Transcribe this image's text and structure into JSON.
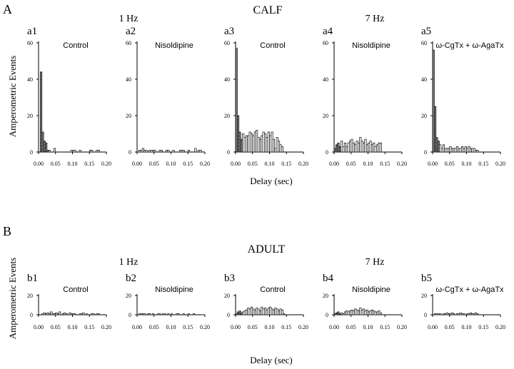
{
  "figure": {
    "panel_letters": [
      "A",
      "B"
    ],
    "section_titles": [
      "CALF",
      "ADULT"
    ],
    "frequency_labels": [
      "1 Hz",
      "7 Hz",
      "1 Hz",
      "7 Hz"
    ],
    "ylabel": "Amperometric Events",
    "xlabel": "Delay (sec)"
  },
  "chart_data": [
    {
      "type": "bar",
      "id": "a1",
      "row": "A",
      "label": "a1",
      "title": "Control",
      "xlabel": "",
      "ylabel": "Amperometric Events",
      "xlim": [
        0,
        0.2
      ],
      "ylim": [
        0,
        60
      ],
      "xticks": [
        "0.00",
        "0.05",
        "0.10",
        "0.15",
        "0.20"
      ],
      "yticks": [
        "0",
        "20",
        "40",
        "60"
      ],
      "bin_width": 0.005,
      "bins_start": [
        0,
        0.005,
        0.01,
        0.015,
        0.02,
        0.025,
        0.03,
        0.035,
        0.04,
        0.045,
        0.05,
        0.055,
        0.06,
        0.065,
        0.07,
        0.075,
        0.08,
        0.085,
        0.09,
        0.095,
        0.1,
        0.105,
        0.11,
        0.115,
        0.12,
        0.125,
        0.13,
        0.135,
        0.14,
        0.145,
        0.15,
        0.155,
        0.16,
        0.165,
        0.17,
        0.175,
        0.18,
        0.185,
        0.19,
        0.195
      ],
      "values": [
        0,
        44,
        11,
        6,
        5,
        1,
        1,
        0,
        0,
        2,
        0,
        0,
        0,
        0,
        0,
        0,
        0,
        0,
        0,
        1,
        1,
        1,
        0,
        0,
        1,
        0,
        0,
        0,
        0,
        0,
        1,
        1,
        0,
        0,
        1,
        1,
        0,
        0,
        0,
        0
      ],
      "hatched_below": 0.03
    },
    {
      "type": "bar",
      "id": "a2",
      "row": "A",
      "label": "a2",
      "title": "Nisoldipine",
      "xlabel": "",
      "ylabel": "",
      "xlim": [
        0,
        0.2
      ],
      "ylim": [
        0,
        60
      ],
      "xticks": [
        "0.00",
        "0.05",
        "0.10",
        "0.15",
        "0.20"
      ],
      "yticks": [
        "0",
        "20",
        "40",
        "60"
      ],
      "bin_width": 0.005,
      "bins_start": [
        0,
        0.005,
        0.01,
        0.015,
        0.02,
        0.025,
        0.03,
        0.035,
        0.04,
        0.045,
        0.05,
        0.055,
        0.06,
        0.065,
        0.07,
        0.075,
        0.08,
        0.085,
        0.09,
        0.095,
        0.1,
        0.105,
        0.11,
        0.115,
        0.12,
        0.125,
        0.13,
        0.135,
        0.14,
        0.145,
        0.15,
        0.155,
        0.16,
        0.165,
        0.17,
        0.175,
        0.18,
        0.185,
        0.19,
        0.195
      ],
      "values": [
        0,
        1,
        1,
        2,
        1,
        1,
        0,
        1,
        1,
        1,
        1,
        0,
        0,
        1,
        1,
        0,
        0,
        1,
        1,
        0,
        0,
        1,
        0,
        0,
        0,
        1,
        1,
        1,
        0,
        0,
        1,
        0,
        0,
        0,
        2,
        0,
        1,
        1,
        0,
        0
      ],
      "hatched_below": 0.0
    },
    {
      "type": "bar",
      "id": "a3",
      "row": "A",
      "label": "a3",
      "title": "Control",
      "xlabel": "Delay (sec)",
      "ylabel": "",
      "xlim": [
        0,
        0.2
      ],
      "ylim": [
        0,
        60
      ],
      "xticks": [
        "0.00",
        "0.05",
        "0.10",
        "0.15",
        "0.20"
      ],
      "yticks": [
        "0",
        "20",
        "40",
        "60"
      ],
      "bin_width": 0.005,
      "bins_start": [
        0,
        0.005,
        0.01,
        0.015,
        0.02,
        0.025,
        0.03,
        0.035,
        0.04,
        0.045,
        0.05,
        0.055,
        0.06,
        0.065,
        0.07,
        0.075,
        0.08,
        0.085,
        0.09,
        0.095,
        0.1,
        0.105,
        0.11,
        0.115,
        0.12,
        0.125,
        0.13,
        0.135,
        0.14,
        0.145,
        0.15,
        0.155,
        0.16,
        0.165,
        0.17,
        0.175,
        0.18,
        0.185,
        0.19,
        0.195
      ],
      "values": [
        57,
        20,
        11,
        7,
        10,
        8,
        9,
        9,
        11,
        10,
        9,
        11,
        12,
        8,
        7,
        9,
        11,
        10,
        8,
        11,
        9,
        11,
        7,
        2,
        8,
        6,
        4,
        3,
        0,
        0,
        0,
        0,
        0,
        0,
        0,
        0,
        0,
        0,
        0,
        0
      ],
      "hatched_below": 0.02
    },
    {
      "type": "bar",
      "id": "a4",
      "row": "A",
      "label": "a4",
      "title": "Nisoldipine",
      "xlabel": "",
      "ylabel": "",
      "xlim": [
        0,
        0.2
      ],
      "ylim": [
        0,
        60
      ],
      "xticks": [
        "0.00",
        "0.05",
        "0.10",
        "0.15",
        "0.20"
      ],
      "yticks": [
        "0",
        "20",
        "40",
        "60"
      ],
      "bin_width": 0.005,
      "bins_start": [
        0,
        0.005,
        0.01,
        0.015,
        0.02,
        0.025,
        0.03,
        0.035,
        0.04,
        0.045,
        0.05,
        0.055,
        0.06,
        0.065,
        0.07,
        0.075,
        0.08,
        0.085,
        0.09,
        0.095,
        0.1,
        0.105,
        0.11,
        0.115,
        0.12,
        0.125,
        0.13,
        0.135,
        0.14,
        0.145,
        0.15,
        0.155,
        0.16,
        0.165,
        0.17,
        0.175,
        0.18,
        0.185,
        0.19,
        0.195
      ],
      "values": [
        2,
        4,
        5,
        3,
        6,
        3,
        5,
        3,
        5,
        6,
        7,
        5,
        4,
        6,
        5,
        8,
        6,
        5,
        7,
        4,
        5,
        6,
        4,
        5,
        3,
        4,
        5,
        5,
        0,
        0,
        0,
        0,
        0,
        0,
        0,
        0,
        0,
        0,
        0,
        0
      ],
      "hatched_below": 0.02
    },
    {
      "type": "bar",
      "id": "a5",
      "row": "A",
      "label": "a5",
      "title": "ω-CgTx + ω-AgaTx",
      "xlabel": "",
      "ylabel": "",
      "xlim": [
        0,
        0.2
      ],
      "ylim": [
        0,
        60
      ],
      "xticks": [
        "0.00",
        "0.05",
        "0.10",
        "0.15",
        "0.20"
      ],
      "yticks": [
        "0",
        "20",
        "40",
        "60"
      ],
      "bin_width": 0.005,
      "bins_start": [
        0,
        0.005,
        0.01,
        0.015,
        0.02,
        0.025,
        0.03,
        0.035,
        0.04,
        0.045,
        0.05,
        0.055,
        0.06,
        0.065,
        0.07,
        0.075,
        0.08,
        0.085,
        0.09,
        0.095,
        0.1,
        0.105,
        0.11,
        0.115,
        0.12,
        0.125,
        0.13,
        0.135,
        0.14,
        0.145,
        0.15,
        0.155,
        0.16,
        0.165,
        0.17,
        0.175,
        0.18,
        0.185,
        0.19,
        0.195
      ],
      "values": [
        56,
        25,
        8,
        6,
        4,
        2,
        4,
        2,
        2,
        2,
        3,
        2,
        2,
        2,
        3,
        2,
        2,
        3,
        2,
        3,
        2,
        3,
        2,
        2,
        2,
        1,
        1,
        0,
        0,
        0,
        0,
        0,
        0,
        0,
        0,
        0,
        0,
        0,
        0,
        0
      ],
      "hatched_below": 0.02
    },
    {
      "type": "bar",
      "id": "b1",
      "row": "B",
      "label": "b1",
      "title": "Control",
      "xlabel": "",
      "ylabel": "Amperometric Events",
      "xlim": [
        0,
        0.2
      ],
      "ylim": [
        0,
        20
      ],
      "xticks": [
        "0.00",
        "0.05",
        "0.10",
        "0.15",
        "0.20"
      ],
      "yticks": [
        "0",
        "20"
      ],
      "bin_width": 0.005,
      "bins_start": [
        0,
        0.005,
        0.01,
        0.015,
        0.02,
        0.025,
        0.03,
        0.035,
        0.04,
        0.045,
        0.05,
        0.055,
        0.06,
        0.065,
        0.07,
        0.075,
        0.08,
        0.085,
        0.09,
        0.095,
        0.1,
        0.105,
        0.11,
        0.115,
        0.12,
        0.125,
        0.13,
        0.135,
        0.14,
        0.145,
        0.15,
        0.155,
        0.16,
        0.165,
        0.17,
        0.175,
        0.18,
        0.185,
        0.19,
        0.195
      ],
      "values": [
        0,
        0,
        1,
        2,
        1,
        2,
        1,
        3,
        1,
        1,
        2,
        1,
        3,
        0,
        1,
        2,
        1,
        0,
        2,
        1,
        1,
        1,
        0,
        0,
        1,
        1,
        2,
        0,
        1,
        0,
        0,
        1,
        1,
        0,
        1,
        1,
        0,
        0,
        0,
        0
      ],
      "hatched_below": 0.0
    },
    {
      "type": "bar",
      "id": "b2",
      "row": "B",
      "label": "b2",
      "title": "Nisoldipine",
      "xlabel": "",
      "ylabel": "",
      "xlim": [
        0,
        0.2
      ],
      "ylim": [
        0,
        20
      ],
      "xticks": [
        "0.00",
        "0.05",
        "0.10",
        "0.15",
        "0.20"
      ],
      "yticks": [
        "0",
        "20"
      ],
      "bin_width": 0.005,
      "bins_start": [
        0,
        0.005,
        0.01,
        0.015,
        0.02,
        0.025,
        0.03,
        0.035,
        0.04,
        0.045,
        0.05,
        0.055,
        0.06,
        0.065,
        0.07,
        0.075,
        0.08,
        0.085,
        0.09,
        0.095,
        0.1,
        0.105,
        0.11,
        0.115,
        0.12,
        0.125,
        0.13,
        0.135,
        0.14,
        0.145,
        0.15,
        0.155,
        0.16,
        0.165,
        0.17,
        0.175,
        0.18,
        0.185,
        0.19,
        0.195
      ],
      "values": [
        0,
        1,
        1,
        1,
        1,
        0,
        1,
        1,
        0,
        1,
        0,
        0,
        1,
        1,
        0,
        1,
        1,
        0,
        1,
        0,
        1,
        0,
        0,
        1,
        1,
        0,
        0,
        1,
        0,
        0,
        1,
        0,
        0,
        1,
        0,
        0,
        0,
        0,
        0,
        0
      ],
      "hatched_below": 0.0
    },
    {
      "type": "bar",
      "id": "b3",
      "row": "B",
      "label": "b3",
      "title": "Control",
      "xlabel": "Delay (sec)",
      "ylabel": "",
      "xlim": [
        0,
        0.2
      ],
      "ylim": [
        0,
        20
      ],
      "xticks": [
        "0.00",
        "0.05",
        "0.10",
        "0.15",
        "0.20"
      ],
      "yticks": [
        "0",
        "20"
      ],
      "bin_width": 0.005,
      "bins_start": [
        0,
        0.005,
        0.01,
        0.015,
        0.02,
        0.025,
        0.03,
        0.035,
        0.04,
        0.045,
        0.05,
        0.055,
        0.06,
        0.065,
        0.07,
        0.075,
        0.08,
        0.085,
        0.09,
        0.095,
        0.1,
        0.105,
        0.11,
        0.115,
        0.12,
        0.125,
        0.13,
        0.135,
        0.14,
        0.145,
        0.15,
        0.155,
        0.16,
        0.165,
        0.17,
        0.175,
        0.18,
        0.185,
        0.19,
        0.195
      ],
      "values": [
        1,
        3,
        4,
        2,
        3,
        4,
        5,
        7,
        6,
        8,
        6,
        5,
        7,
        6,
        4,
        8,
        6,
        7,
        5,
        7,
        8,
        6,
        5,
        7,
        6,
        4,
        6,
        5,
        1,
        0,
        0,
        0,
        0,
        0,
        0,
        0,
        0,
        0,
        0,
        0
      ],
      "hatched_below": 0.02
    },
    {
      "type": "bar",
      "id": "b4",
      "row": "B",
      "label": "b4",
      "title": "Nisoldipine",
      "xlabel": "",
      "ylabel": "",
      "xlim": [
        0,
        0.2
      ],
      "ylim": [
        0,
        20
      ],
      "xticks": [
        "0.00",
        "0.05",
        "0.10",
        "0.15",
        "0.20"
      ],
      "yticks": [
        "0",
        "20"
      ],
      "bin_width": 0.005,
      "bins_start": [
        0,
        0.005,
        0.01,
        0.015,
        0.02,
        0.025,
        0.03,
        0.035,
        0.04,
        0.045,
        0.05,
        0.055,
        0.06,
        0.065,
        0.07,
        0.075,
        0.08,
        0.085,
        0.09,
        0.095,
        0.1,
        0.105,
        0.11,
        0.115,
        0.12,
        0.125,
        0.13,
        0.135,
        0.14,
        0.145,
        0.15,
        0.155,
        0.16,
        0.165,
        0.17,
        0.175,
        0.18,
        0.185,
        0.19,
        0.195
      ],
      "values": [
        1,
        2,
        3,
        1,
        2,
        1,
        3,
        4,
        3,
        4,
        5,
        4,
        6,
        5,
        4,
        7,
        5,
        6,
        4,
        5,
        3,
        4,
        5,
        4,
        3,
        3,
        4,
        2,
        0,
        0,
        0,
        0,
        0,
        0,
        0,
        0,
        0,
        0,
        0,
        0
      ],
      "hatched_below": 0.02
    },
    {
      "type": "bar",
      "id": "b5",
      "row": "B",
      "label": "b5",
      "title": "ω-CgTx + ω-AgaTx",
      "xlabel": "",
      "ylabel": "",
      "xlim": [
        0,
        0.2
      ],
      "ylim": [
        0,
        20
      ],
      "xticks": [
        "0.00",
        "0.05",
        "0.10",
        "0.15",
        "0.20"
      ],
      "yticks": [
        "0",
        "20"
      ],
      "bin_width": 0.005,
      "bins_start": [
        0,
        0.005,
        0.01,
        0.015,
        0.02,
        0.025,
        0.03,
        0.035,
        0.04,
        0.045,
        0.05,
        0.055,
        0.06,
        0.065,
        0.07,
        0.075,
        0.08,
        0.085,
        0.09,
        0.095,
        0.1,
        0.105,
        0.11,
        0.115,
        0.12,
        0.125,
        0.13,
        0.135,
        0.14,
        0.145,
        0.15,
        0.155,
        0.16,
        0.165,
        0.17,
        0.175,
        0.18,
        0.185,
        0.19,
        0.195
      ],
      "values": [
        0,
        1,
        1,
        1,
        1,
        0,
        1,
        1,
        2,
        1,
        1,
        2,
        1,
        0,
        1,
        1,
        2,
        1,
        1,
        0,
        1,
        1,
        2,
        1,
        1,
        2,
        1,
        0,
        0,
        0,
        0,
        0,
        0,
        0,
        0,
        0,
        0,
        0,
        0,
        0
      ],
      "hatched_below": 0.0
    }
  ]
}
